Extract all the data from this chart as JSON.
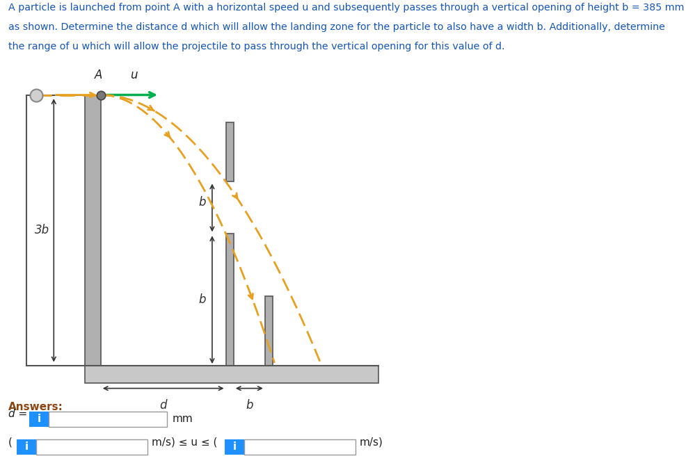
{
  "title_line1": "A particle is launched from point ",
  "title_line1b": "A",
  "title_line1c": " with a horizontal speed ",
  "title_line1d": "u",
  "title_line1e": " and subsequently passes through a vertical opening of height ",
  "title_line1f": "b",
  "title_line1g": " = 385 mm",
  "title_line2a": "as shown. Determine the distance ",
  "title_line2b": "d",
  "title_line2c": " which will allow the landing zone for the particle to also have a width ",
  "title_line2d": "b",
  "title_line2e": ". Additionally, determine",
  "title_line3a": "the range of ",
  "title_line3b": "u",
  "title_line3c": " which will allow the projectile to pass through the vertical opening for this value of ",
  "title_line3d": "d",
  "title_line3e": ".",
  "title_color": "#1555b7",
  "title_italic_color": "#1555b7",
  "answers_label": "Answers:",
  "answers_color": "#8B4513",
  "background_color": "#ffffff",
  "box_fill": "#ffffff",
  "box_border": "#999999",
  "highlight_fill": "#1e90ff",
  "highlight_text": "i",
  "highlight_text_color": "#ffffff",
  "wall_color": "#b0b0b0",
  "wall_edge": "#555555",
  "ground_color": "#c8c8c8",
  "ground_edge": "#555555",
  "arrow_color": "#e8a020",
  "u_arrow_color": "#00b050",
  "label_color": "#333333",
  "point_A_label": "A",
  "u_label": "u",
  "label_3b": "3b",
  "label_b1": "b",
  "label_b2": "b",
  "label_d": "d",
  "label_bh": "b",
  "mm_label": "mm"
}
